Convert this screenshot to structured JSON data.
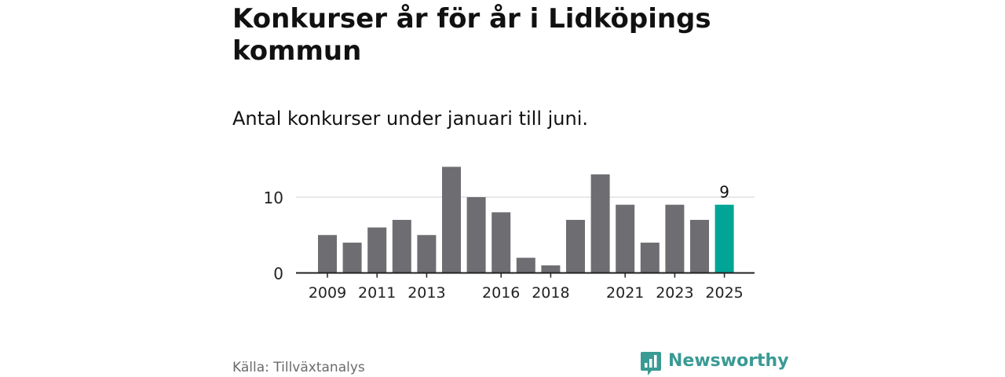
{
  "title": "Konkurser år för år i Lidköpings kommun",
  "subtitle": "Antal konkurser under januari till juni.",
  "source": "Källa: Tillväxtanalys",
  "brand": {
    "name": "Newsworthy",
    "icon": "newsworthy-logo-icon"
  },
  "colors": {
    "bar": "#6e6d72",
    "highlight": "#00a596",
    "grid": "#d9d9d9",
    "axis": "#222222",
    "brand": "#3a9a94"
  },
  "chart_data": {
    "type": "bar",
    "categories": [
      "2009",
      "2010",
      "2011",
      "2012",
      "2013",
      "2014",
      "2015",
      "2016",
      "2017",
      "2018",
      "2019",
      "2020",
      "2021",
      "2022",
      "2023",
      "2024",
      "2025"
    ],
    "values": [
      5,
      4,
      6,
      7,
      5,
      14,
      10,
      8,
      2,
      1,
      7,
      13,
      9,
      4,
      9,
      7,
      9
    ],
    "highlight_index": 16,
    "highlight_label": "9",
    "x_tick_labels": [
      "2009",
      "2011",
      "2013",
      "2016",
      "2018",
      "2021",
      "2023",
      "2025"
    ],
    "y_ticks": [
      0,
      10
    ],
    "ylim": [
      0,
      14
    ],
    "gridlines": [
      10
    ],
    "title": "Konkurser år för år i Lidköpings kommun",
    "xlabel": "",
    "ylabel": ""
  }
}
